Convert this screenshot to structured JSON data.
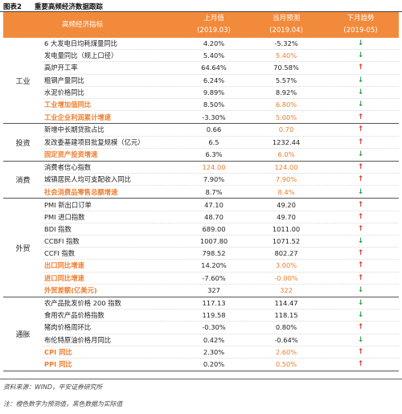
{
  "caption": {
    "number": "图表2",
    "title": "重要高频经济数据跟踪"
  },
  "header": {
    "indicator": "高频经济指标",
    "col1": {
      "label": "上月值",
      "period": "(2019.03)"
    },
    "col2": {
      "label": "当月预测",
      "period": "(2019.04)"
    },
    "col3": {
      "label": "下月趋势",
      "period": "(2019-05)"
    }
  },
  "groups": [
    {
      "label": "工业",
      "rows": [
        {
          "name": "6 大发电日均耗煤量同比",
          "prev": "4.20%",
          "fcst": "-5.32%",
          "fcst_orange": false,
          "trend": "down",
          "bold": false
        },
        {
          "name": "发电量同比（规上口径）",
          "prev": "5.40%",
          "fcst": "5.40%",
          "fcst_orange": true,
          "trend": "down",
          "bold": false
        },
        {
          "name": "高炉开工率",
          "prev": "64.64%",
          "fcst": "70.58%",
          "fcst_orange": false,
          "trend": "up",
          "bold": false
        },
        {
          "name": "粗钢产量同比",
          "prev": "6.24%",
          "fcst": "5.57%",
          "fcst_orange": false,
          "trend": "down",
          "bold": false
        },
        {
          "name": "水泥价格同比",
          "prev": "9.89%",
          "fcst": "8.92%",
          "fcst_orange": false,
          "trend": "down",
          "bold": false
        },
        {
          "name": "工业增加值同比",
          "prev": "8.50%",
          "fcst": "6.80%",
          "fcst_orange": true,
          "trend": "down",
          "bold": true
        },
        {
          "name": "工业企业利润累计增速",
          "prev": "-3.30%",
          "fcst": "5.00%",
          "fcst_orange": true,
          "trend": "up",
          "bold": true
        }
      ]
    },
    {
      "label": "投资",
      "rows": [
        {
          "name": "新增中长期贷款占比",
          "prev": "0.66",
          "fcst": "0.70",
          "fcst_orange": true,
          "trend": "up",
          "bold": false
        },
        {
          "name": "发改委基建项目批复规模（亿元）",
          "prev": "6.5",
          "fcst": "1232.44",
          "fcst_orange": false,
          "trend": "up",
          "bold": false
        },
        {
          "name": "固定资产投资增速",
          "prev": "6.3%",
          "fcst": "6.0%",
          "fcst_orange": true,
          "trend": "down",
          "bold": true
        }
      ]
    },
    {
      "label": "消费",
      "rows": [
        {
          "name": "消费者信心指数",
          "prev": "124.00",
          "prev_orange": true,
          "fcst": "124.00",
          "fcst_orange": true,
          "trend": "up",
          "bold": false
        },
        {
          "name": "城镇居民人均可支配收入同比",
          "prev": "7.90%",
          "fcst": "7.90%",
          "fcst_orange": true,
          "trend": "up",
          "bold": false
        },
        {
          "name": "社会消费品零售总额增速",
          "prev": "8.7%",
          "fcst": "8.4%",
          "fcst_orange": true,
          "trend": "down",
          "bold": true
        }
      ]
    },
    {
      "label": "外贸",
      "rows": [
        {
          "name": "PMI 新出口订单",
          "prev": "47.10",
          "fcst": "49.20",
          "fcst_orange": false,
          "trend": "up",
          "bold": false
        },
        {
          "name": "PMI 进口指数",
          "prev": "48.70",
          "fcst": "49.70",
          "fcst_orange": false,
          "trend": "up",
          "bold": false
        },
        {
          "name": "BDI 指数",
          "prev": "689.00",
          "fcst": "1011.00",
          "fcst_orange": false,
          "trend": "up",
          "bold": false
        },
        {
          "name": "CCBFI 指数",
          "prev": "1007.80",
          "fcst": "1071.52",
          "fcst_orange": false,
          "trend": "down",
          "bold": false
        },
        {
          "name": "CCFI 指数",
          "prev": "798.52",
          "fcst": "802.27",
          "fcst_orange": false,
          "trend": "up",
          "bold": false
        },
        {
          "name": "出口同比增速",
          "prev": "14.20%",
          "fcst": "3.00%",
          "fcst_orange": true,
          "trend": "up",
          "bold": true
        },
        {
          "name": "进口同比增速",
          "prev": "-7.60%",
          "fcst": "-0.00%",
          "fcst_orange": true,
          "trend": "up",
          "bold": true
        },
        {
          "name": "外贸差额(亿美元)",
          "prev": "327",
          "fcst": "322",
          "fcst_orange": true,
          "trend": "down",
          "bold": true
        }
      ]
    },
    {
      "label": "通胀",
      "rows": [
        {
          "name": "农产品批发价格 200 指数",
          "prev": "117.13",
          "fcst": "114.47",
          "fcst_orange": false,
          "trend": "down",
          "bold": false
        },
        {
          "name": "食用农产品价格指数",
          "prev": "119.58",
          "fcst": "118.15",
          "fcst_orange": false,
          "trend": "down",
          "bold": false
        },
        {
          "name": "猪肉价格周环比",
          "prev": "-0.30%",
          "fcst": "0.80%",
          "fcst_orange": false,
          "trend": "up",
          "bold": false
        },
        {
          "name": "布伦特原油价格月同比",
          "prev": "0.42%",
          "fcst": "-0.64%",
          "fcst_orange": false,
          "trend": "down",
          "bold": false
        },
        {
          "name": "CPI 同比",
          "prev": "2.30%",
          "fcst": "2.60%",
          "fcst_orange": true,
          "trend": "up",
          "bold": true
        },
        {
          "name": "PPI 同比",
          "prev": "0.20%",
          "fcst": "0.50%",
          "fcst_orange": true,
          "trend": "up",
          "bold": true
        }
      ]
    }
  ],
  "arrows": {
    "up": "↑",
    "down": "↓"
  },
  "colors": {
    "header_bg": "#f28a3c",
    "orange": "#ee7d2f",
    "up": "#d9382b",
    "down": "#2b9c46"
  },
  "footer": {
    "source": "资料来源：WIND，平安证券研究所",
    "note": "注：橙色数字为预测值，黑色数据为实际值"
  }
}
